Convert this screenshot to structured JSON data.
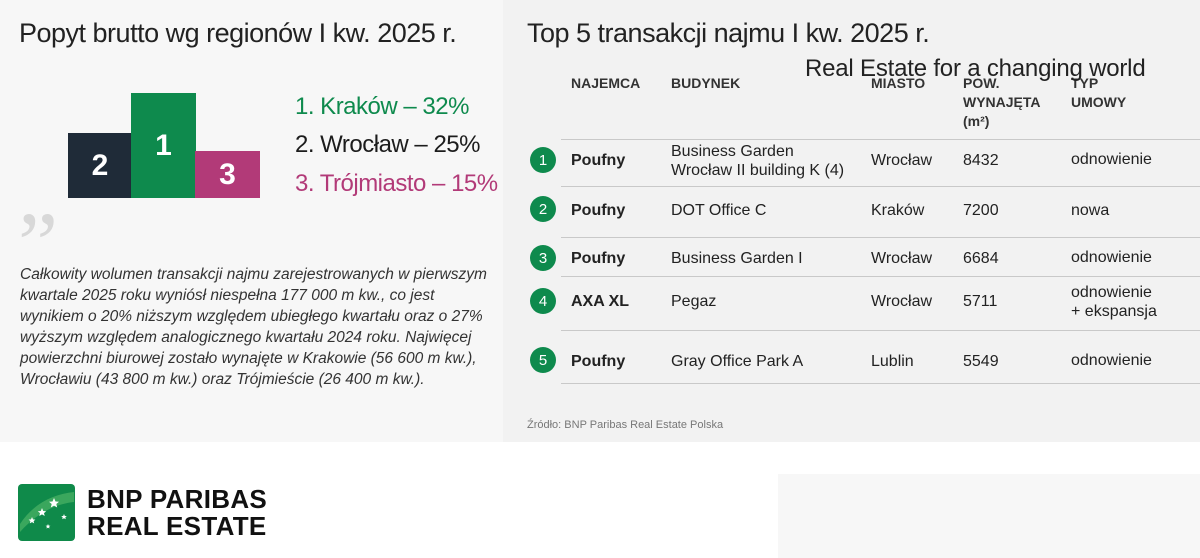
{
  "left": {
    "title": "Popyt brutto wg regionów I kw. 2025 r.",
    "podium": [
      {
        "label": "2",
        "color": "#1f2b38"
      },
      {
        "label": "1",
        "color": "#0e8a4d"
      },
      {
        "label": "3",
        "color": "#b23a78"
      }
    ],
    "ranking": [
      {
        "text": "1. Kraków – 32%",
        "color": "#0e8a4d"
      },
      {
        "text": "2. Wrocław – 25%",
        "color": "#1c1c1c"
      },
      {
        "text": "3. Trójmiasto – 15%",
        "color": "#b23a78"
      }
    ],
    "quote_mark": "”",
    "summary": "Całkowity wolumen transakcji najmu zarejestrowanych w pierwszym kwartale 2025 roku wyniósł niespełna 177 000 m kw., co jest wynikiem o 20% niższym względem ubiegłego kwartału oraz o 27% wyższym względem analogicznego kwartału 2024 roku. Najwięcej powierzchni biurowej zostało wynajęte w Krakowie (56 600 m kw.), Wrocławiu (43 800 m kw.) oraz Trójmieście (26 400 m kw.)."
  },
  "right": {
    "title": "Top 5 transakcji najmu I kw. 2025 r.",
    "headers": {
      "tenant": "NAJEMCA",
      "building": "BUDYNEK",
      "city": "MIASTO",
      "area_l1": "POW.",
      "area_l2": "WYNAJĘTA",
      "area_l3": "(m²)",
      "type_l1": "TYP",
      "type_l2": "UMOWY"
    },
    "rows": [
      {
        "rank": "1",
        "tenant": "Poufny",
        "building_l1": "Business Garden",
        "building_l2": "Wrocław II building K (4)",
        "city": "Wrocław",
        "area": "8432",
        "type_l1": "odnowienie",
        "type_l2": ""
      },
      {
        "rank": "2",
        "tenant": "Poufny",
        "building_l1": "DOT Office C",
        "building_l2": "",
        "city": "Kraków",
        "area": "7200",
        "type_l1": "nowa",
        "type_l2": ""
      },
      {
        "rank": "3",
        "tenant": "Poufny",
        "building_l1": "Business Garden I",
        "building_l2": "",
        "city": "Wrocław",
        "area": "6684",
        "type_l1": "odnowienie",
        "type_l2": ""
      },
      {
        "rank": "4",
        "tenant": "AXA XL",
        "building_l1": "Pegaz",
        "building_l2": "",
        "city": "Wrocław",
        "area": "5711",
        "type_l1": "odnowienie",
        "type_l2": "+ ekspansja"
      },
      {
        "rank": "5",
        "tenant": "Poufny",
        "building_l1": "Gray Office Park A",
        "building_l2": "",
        "city": "Lublin",
        "area": "5549",
        "type_l1": "odnowienie",
        "type_l2": ""
      }
    ],
    "source": "Źródło: BNP Paribas Real Estate Polska"
  },
  "footer": {
    "brand_l1": "BNP PARIBAS",
    "brand_l2": "REAL ESTATE",
    "logo_icon": "stars-icon",
    "tagline": "Real Estate for a changing world"
  }
}
